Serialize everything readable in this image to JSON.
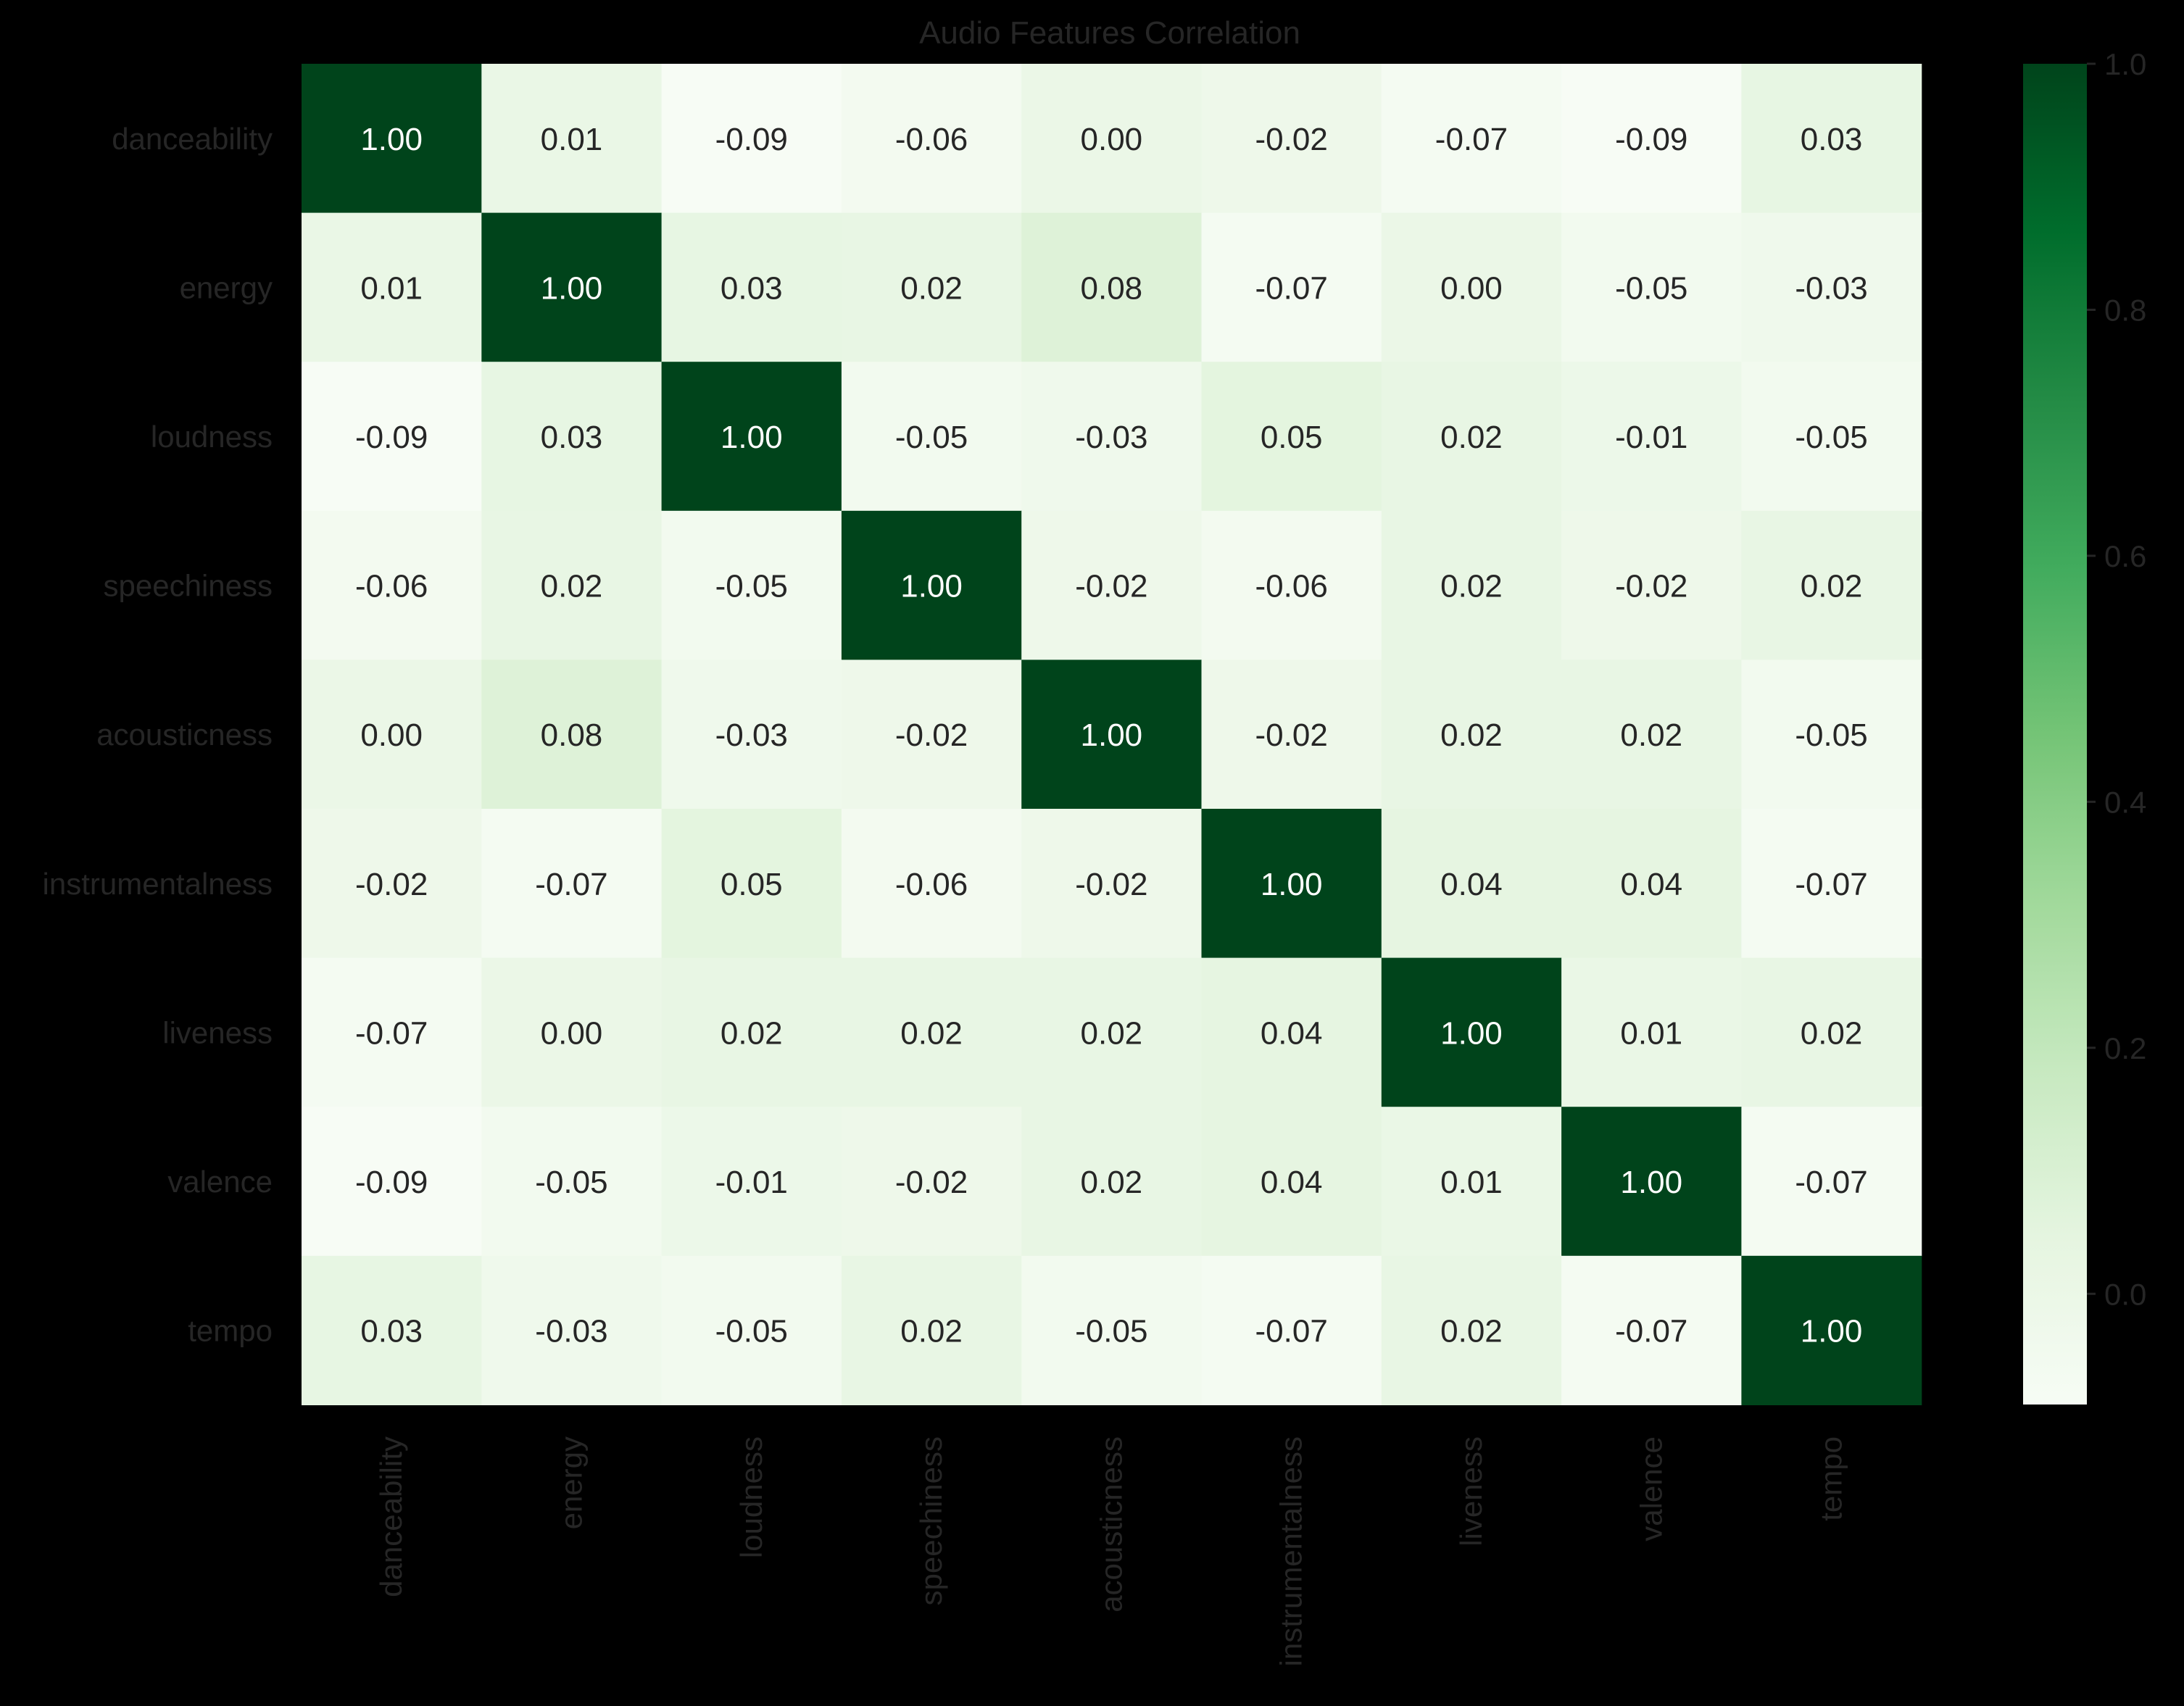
{
  "chart_data": {
    "type": "heatmap",
    "title": "Audio Features Correlation",
    "xlabel": "",
    "ylabel": "",
    "rows": [
      "danceability",
      "energy",
      "loudness",
      "speechiness",
      "acousticness",
      "instrumentalness",
      "liveness",
      "valence",
      "tempo"
    ],
    "columns": [
      "danceability",
      "energy",
      "loudness",
      "speechiness",
      "acousticness",
      "instrumentalness",
      "liveness",
      "valence",
      "tempo"
    ],
    "values": [
      [
        1.0,
        0.01,
        -0.09,
        -0.06,
        0.0,
        -0.02,
        -0.07,
        -0.09,
        0.03
      ],
      [
        0.01,
        1.0,
        0.03,
        0.02,
        0.08,
        -0.07,
        0.0,
        -0.05,
        -0.03
      ],
      [
        -0.09,
        0.03,
        1.0,
        -0.05,
        -0.03,
        0.05,
        0.02,
        -0.01,
        -0.05
      ],
      [
        -0.06,
        0.02,
        -0.05,
        1.0,
        -0.02,
        -0.06,
        0.02,
        -0.02,
        0.02
      ],
      [
        0.0,
        0.08,
        -0.03,
        -0.02,
        1.0,
        -0.02,
        0.02,
        0.02,
        -0.05
      ],
      [
        -0.02,
        -0.07,
        0.05,
        -0.06,
        -0.02,
        1.0,
        0.04,
        0.04,
        -0.07
      ],
      [
        -0.07,
        0.0,
        0.02,
        0.02,
        0.02,
        0.04,
        1.0,
        0.01,
        0.02
      ],
      [
        -0.09,
        -0.05,
        -0.01,
        -0.02,
        0.02,
        0.04,
        0.01,
        1.0,
        -0.07
      ],
      [
        0.03,
        -0.03,
        -0.05,
        0.02,
        -0.05,
        -0.07,
        0.02,
        -0.07,
        1.0
      ]
    ],
    "value_format": "0.00",
    "colormap": "Greens",
    "color_range": [
      -0.09,
      1.0
    ],
    "colorbar": {
      "ticks": [
        0.0,
        0.2,
        0.4,
        0.6,
        0.8,
        1.0
      ],
      "tick_labels": [
        "0.0",
        "0.2",
        "0.4",
        "0.6",
        "0.8",
        "1.0"
      ]
    },
    "grid": false,
    "legend": "colorbar-right",
    "colors": {
      "background": "#000000",
      "label_text": "#262626",
      "annotation_dark": "#262626",
      "annotation_light": "#ffffff",
      "greens_stops": [
        "#f7fcf5",
        "#e5f5e0",
        "#c7e9c0",
        "#a1d99b",
        "#74c476",
        "#41ab5d",
        "#238b45",
        "#006d2c",
        "#00441b"
      ]
    }
  }
}
